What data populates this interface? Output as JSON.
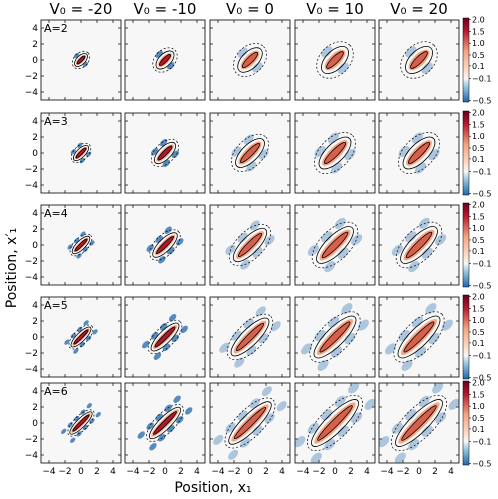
{
  "chart_data": {
    "type": "heatmap",
    "title": "",
    "xlabel": "Position, x₁",
    "ylabel": "Position, x′₁",
    "columns": [
      {
        "label": "V₀ = -20",
        "v0": -20
      },
      {
        "label": "V₀ = -10",
        "v0": -10
      },
      {
        "label": "V₀ = 0",
        "v0": 0
      },
      {
        "label": "V₀ = 10",
        "v0": 10
      },
      {
        "label": "V₀ = 20",
        "v0": 20
      }
    ],
    "rows": [
      {
        "label": "A=2",
        "A": 2
      },
      {
        "label": "A=3",
        "A": 3
      },
      {
        "label": "A=4",
        "A": 4
      },
      {
        "label": "A=5",
        "A": 5
      },
      {
        "label": "A=6",
        "A": 6
      }
    ],
    "xlim": [
      -5,
      5
    ],
    "ylim": [
      -5,
      5
    ],
    "x_ticks": [
      "−4",
      "−2",
      "0",
      "2",
      "4"
    ],
    "y_ticks": [
      "4",
      "2",
      "0",
      "−2",
      "−4"
    ],
    "colorbar": {
      "colormap": "diverging RdBu (red positive, blue negative)",
      "range": [
        -0.5,
        2.0
      ],
      "ticks": [
        "2.0",
        "1.5",
        "1.0",
        "0.5",
        "0.1",
        "−0.1",
        "−0.5"
      ]
    },
    "colors": {
      "positive": "#b2182b",
      "mid": "#f7f7f7",
      "negative": "#2166ac"
    }
  }
}
